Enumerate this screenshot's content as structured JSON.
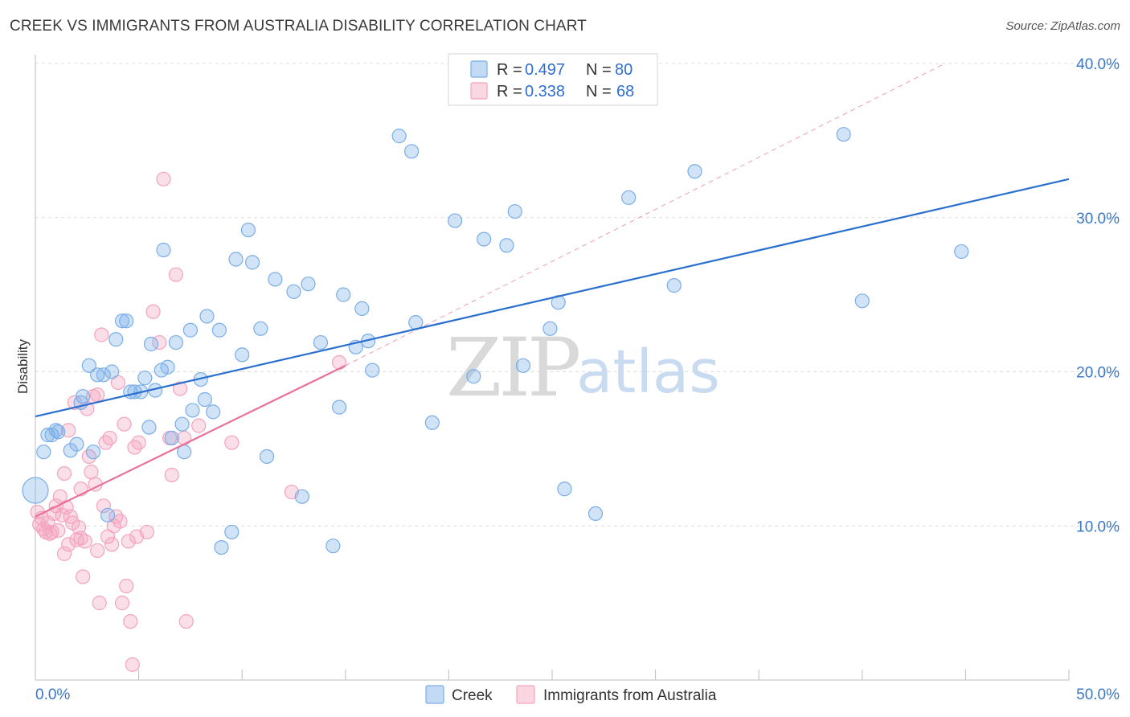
{
  "title": "CREEK VS IMMIGRANTS FROM AUSTRALIA DISABILITY CORRELATION CHART",
  "source": "Source: ZipAtlas.com",
  "watermark": {
    "part1": "ZIP",
    "part2": "atlas"
  },
  "colors": {
    "creek": "#7aaee8",
    "creek_line": "#2a6fcf",
    "australia": "#f4a3bd",
    "australia_line": "#e8709a",
    "accent_text": "#3a78c8"
  },
  "legend": {
    "rows": [
      {
        "r_label": "R = ",
        "r_value": "0.497",
        "n_label": "N = ",
        "n_value": "80"
      },
      {
        "r_label": "R = ",
        "r_value": "0.338",
        "n_label": "N = ",
        "n_value": "68"
      }
    ]
  },
  "chart_data": {
    "type": "scatter",
    "title": "CREEK VS IMMIGRANTS FROM AUSTRALIA DISABILITY CORRELATION CHART",
    "xlabel": "",
    "ylabel": "Disability",
    "xlim": [
      0,
      50
    ],
    "ylim": [
      0,
      40
    ],
    "x_tick_labels": [
      "0.0%",
      "50.0%"
    ],
    "y_ticks": [
      10,
      20,
      30,
      40
    ],
    "y_tick_labels": [
      "10.0%",
      "20.0%",
      "30.0%",
      "40.0%"
    ],
    "series": [
      {
        "name": "Creek",
        "r": 0.497,
        "n": 80,
        "trend": {
          "x0": 0,
          "y0": 17.1,
          "x1": 50,
          "y1": 32.5
        },
        "points": [
          [
            0.0,
            12.3
          ],
          [
            0.4,
            14.8
          ],
          [
            0.6,
            15.9
          ],
          [
            0.8,
            15.9
          ],
          [
            1.0,
            16.2
          ],
          [
            1.1,
            16.1
          ],
          [
            1.7,
            14.9
          ],
          [
            2.0,
            15.3
          ],
          [
            2.2,
            18.0
          ],
          [
            2.3,
            18.4
          ],
          [
            2.6,
            20.4
          ],
          [
            2.8,
            14.8
          ],
          [
            3.0,
            19.8
          ],
          [
            3.3,
            19.8
          ],
          [
            3.5,
            10.7
          ],
          [
            3.7,
            20.0
          ],
          [
            3.9,
            22.1
          ],
          [
            4.2,
            23.3
          ],
          [
            4.4,
            23.3
          ],
          [
            4.6,
            18.7
          ],
          [
            4.8,
            18.7
          ],
          [
            5.1,
            18.7
          ],
          [
            5.3,
            19.6
          ],
          [
            5.5,
            16.4
          ],
          [
            5.6,
            21.8
          ],
          [
            5.8,
            18.8
          ],
          [
            6.1,
            20.1
          ],
          [
            6.2,
            27.9
          ],
          [
            6.4,
            20.3
          ],
          [
            6.6,
            15.7
          ],
          [
            6.8,
            21.9
          ],
          [
            7.1,
            16.6
          ],
          [
            7.2,
            14.8
          ],
          [
            7.5,
            22.7
          ],
          [
            7.6,
            17.5
          ],
          [
            8.0,
            19.5
          ],
          [
            8.2,
            18.2
          ],
          [
            8.3,
            23.6
          ],
          [
            8.6,
            17.4
          ],
          [
            8.9,
            22.7
          ],
          [
            9.0,
            8.6
          ],
          [
            9.5,
            9.6
          ],
          [
            9.7,
            27.3
          ],
          [
            10.0,
            21.1
          ],
          [
            10.3,
            29.2
          ],
          [
            10.5,
            27.1
          ],
          [
            10.9,
            22.8
          ],
          [
            11.2,
            14.5
          ],
          [
            11.6,
            26.0
          ],
          [
            12.5,
            25.2
          ],
          [
            12.9,
            11.9
          ],
          [
            13.2,
            25.7
          ],
          [
            13.8,
            21.9
          ],
          [
            14.4,
            8.7
          ],
          [
            14.7,
            17.7
          ],
          [
            14.9,
            25.0
          ],
          [
            15.5,
            21.6
          ],
          [
            15.8,
            24.1
          ],
          [
            16.1,
            22.0
          ],
          [
            16.3,
            20.1
          ],
          [
            17.6,
            35.3
          ],
          [
            18.2,
            34.3
          ],
          [
            18.4,
            23.2
          ],
          [
            19.2,
            16.7
          ],
          [
            20.3,
            29.8
          ],
          [
            21.2,
            19.7
          ],
          [
            21.7,
            28.6
          ],
          [
            22.8,
            28.2
          ],
          [
            23.2,
            30.4
          ],
          [
            23.6,
            20.4
          ],
          [
            24.9,
            22.8
          ],
          [
            25.3,
            24.5
          ],
          [
            25.6,
            12.4
          ],
          [
            27.1,
            10.8
          ],
          [
            28.7,
            31.3
          ],
          [
            30.9,
            25.6
          ],
          [
            31.9,
            33.0
          ],
          [
            39.1,
            35.4
          ],
          [
            40.0,
            24.6
          ],
          [
            44.8,
            27.8
          ]
        ]
      },
      {
        "name": "Immigrants from Australia",
        "r": 0.338,
        "n": 68,
        "trend": {
          "x0": 0,
          "y0": 10.6,
          "x1": 15.0,
          "y1": 20.4
        },
        "dashed_extension": {
          "x0": 15.0,
          "y0": 20.4,
          "x1": 44.0,
          "y1": 40.0
        },
        "points": [
          [
            0.1,
            10.9
          ],
          [
            0.2,
            10.1
          ],
          [
            0.3,
            10.5
          ],
          [
            0.4,
            9.8
          ],
          [
            0.5,
            9.6
          ],
          [
            0.6,
            10.2
          ],
          [
            0.7,
            9.5
          ],
          [
            0.8,
            9.6
          ],
          [
            1.0,
            11.3
          ],
          [
            1.1,
            9.7
          ],
          [
            1.2,
            11.9
          ],
          [
            1.3,
            10.7
          ],
          [
            1.4,
            13.4
          ],
          [
            1.5,
            11.2
          ],
          [
            1.6,
            8.8
          ],
          [
            1.7,
            10.6
          ],
          [
            1.8,
            10.2
          ],
          [
            1.9,
            18.0
          ],
          [
            2.0,
            9.1
          ],
          [
            2.1,
            9.9
          ],
          [
            2.2,
            12.4
          ],
          [
            2.3,
            6.7
          ],
          [
            2.4,
            9.0
          ],
          [
            2.5,
            17.6
          ],
          [
            2.6,
            14.5
          ],
          [
            2.7,
            13.5
          ],
          [
            2.8,
            18.4
          ],
          [
            2.9,
            12.7
          ],
          [
            3.0,
            8.4
          ],
          [
            3.1,
            5.0
          ],
          [
            3.2,
            22.4
          ],
          [
            3.3,
            11.3
          ],
          [
            3.4,
            15.4
          ],
          [
            3.5,
            9.3
          ],
          [
            3.6,
            15.7
          ],
          [
            3.7,
            8.8
          ],
          [
            3.8,
            10.0
          ],
          [
            3.9,
            10.6
          ],
          [
            4.0,
            19.3
          ],
          [
            4.1,
            10.3
          ],
          [
            4.2,
            5.0
          ],
          [
            4.3,
            16.6
          ],
          [
            4.4,
            6.1
          ],
          [
            4.5,
            9.0
          ],
          [
            4.6,
            3.8
          ],
          [
            4.7,
            1.0
          ],
          [
            4.8,
            15.1
          ],
          [
            4.9,
            9.3
          ],
          [
            5.0,
            15.4
          ],
          [
            5.4,
            9.6
          ],
          [
            5.7,
            23.9
          ],
          [
            6.0,
            21.9
          ],
          [
            6.2,
            32.5
          ],
          [
            6.5,
            15.7
          ],
          [
            6.6,
            13.3
          ],
          [
            6.8,
            26.3
          ],
          [
            7.0,
            18.9
          ],
          [
            7.2,
            15.7
          ],
          [
            7.3,
            3.8
          ],
          [
            7.9,
            16.5
          ],
          [
            9.5,
            15.4
          ],
          [
            12.4,
            12.2
          ],
          [
            14.7,
            20.6
          ],
          [
            2.2,
            9.2
          ],
          [
            1.4,
            8.2
          ],
          [
            0.9,
            10.8
          ],
          [
            3.0,
            18.5
          ],
          [
            1.6,
            16.2
          ]
        ]
      }
    ],
    "legend_position": "top-center"
  },
  "bottom_legend": {
    "items": [
      "Creek",
      "Immigrants from Australia"
    ]
  }
}
